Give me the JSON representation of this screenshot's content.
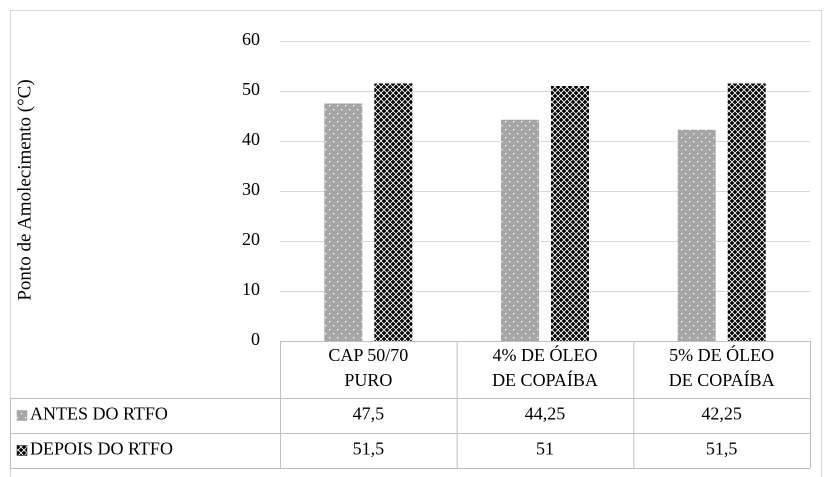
{
  "chart_data": {
    "type": "bar",
    "y_label": "Ponto de Amolecimento (°C)",
    "categories": [
      "CAP 50/70\nPURO",
      "4% DE ÓLEO\nDE COPAÍBA",
      "5% DE ÓLEO\nDE COPAÍBA"
    ],
    "series": [
      {
        "name": "ANTES DO RTFO",
        "color": "#a6a6a6",
        "values": [
          47.5,
          44.25,
          42.25
        ],
        "value_labels": [
          "47,5",
          "44,25",
          "42,25"
        ]
      },
      {
        "name": "DEPOIS DO RTFO",
        "color": "#000000",
        "values": [
          51.5,
          51,
          51.5
        ],
        "value_labels": [
          "51,5",
          "51",
          "51,5"
        ]
      }
    ],
    "ylim": [
      0,
      60
    ],
    "yticks": [
      0,
      10,
      20,
      30,
      40,
      50,
      60
    ],
    "grid": true
  }
}
